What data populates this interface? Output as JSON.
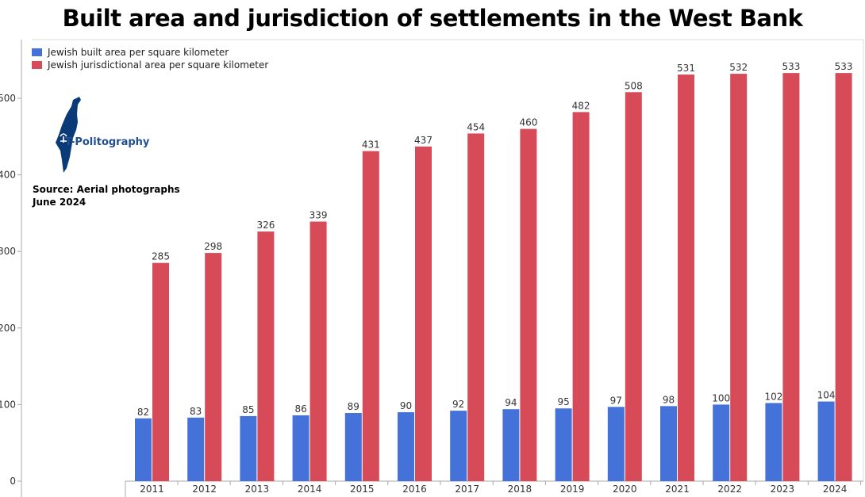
{
  "colors": {
    "built": "#4472d9",
    "jurisdiction": "#d64b57",
    "logo": "#0b3a78",
    "axis": "#a8a8a8"
  },
  "logo": {
    "text": "T-Politography",
    "icon": "israel-map-icon"
  },
  "source": {
    "line1": "Source: Aerial photographs",
    "line2": "June 2024"
  },
  "chart_data": {
    "type": "bar",
    "title": "Built area and jurisdiction of settlements in the West Bank",
    "categories": [
      "2011",
      "2012",
      "2013",
      "2014",
      "2015",
      "2016",
      "2017",
      "2018",
      "2019",
      "2020",
      "2021",
      "2022",
      "2023",
      "2024"
    ],
    "series": [
      {
        "name": "Jewish built area per square kilometer",
        "values": [
          82,
          83,
          85,
          86,
          89,
          90,
          92,
          94,
          95,
          97,
          98,
          100,
          102,
          104
        ]
      },
      {
        "name": "Jewish jurisdictional area per square kilometer",
        "values": [
          285,
          298,
          326,
          339,
          431,
          437,
          454,
          460,
          482,
          508,
          531,
          532,
          533,
          533
        ]
      }
    ],
    "ylim": [
      0,
      550
    ],
    "y_ticks": [
      "0",
      "100",
      "200",
      "300",
      "400",
      "500"
    ],
    "legend_position": "top-left",
    "grid": false
  }
}
